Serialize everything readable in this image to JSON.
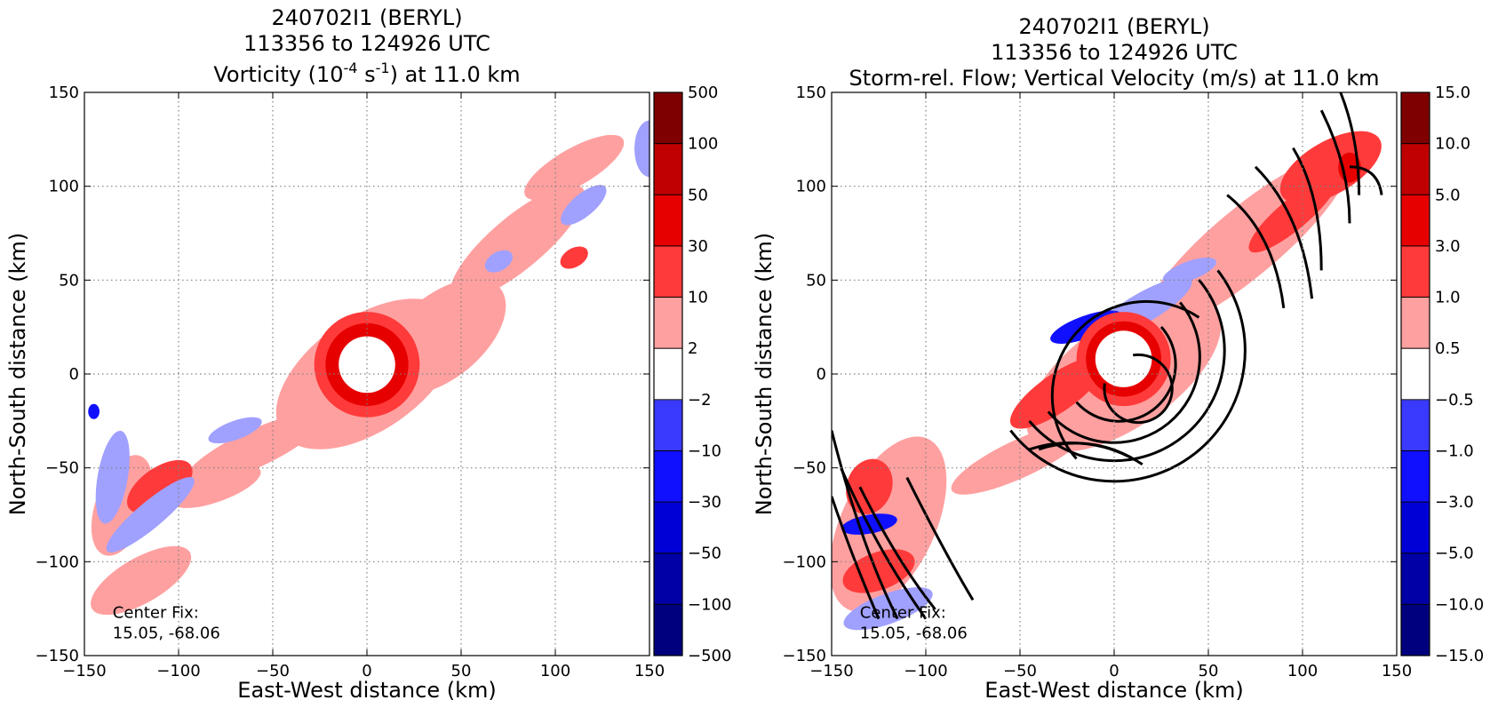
{
  "colors": {
    "neg": [
      "#00007f",
      "#0000a6",
      "#0000d6",
      "#1010ff",
      "#3a3aff",
      "#a0a0ff"
    ],
    "pos": [
      "#ffa0a0",
      "#ff3a3a",
      "#e60000",
      "#c00000",
      "#9c0000",
      "#7f0000"
    ],
    "white": "#ffffff",
    "grid": "#808080",
    "stream": "#000000"
  },
  "chart_data": [
    {
      "type": "heatmap",
      "title_lines": [
        "240702I1 (BERYL)",
        "113356 to 124926 UTC"
      ],
      "title_var_prefix": "Vorticity (10",
      "title_var_exp1": "-4",
      "title_var_mid": " s",
      "title_var_exp2": "-1",
      "title_var_suffix": ") at 11.0 km",
      "xlabel": "East-West distance (km)",
      "ylabel": "North-South distance (km)",
      "xlim": [
        -150,
        150
      ],
      "ylim": [
        -150,
        150
      ],
      "xticks": [
        "−150",
        "−100",
        "−50",
        "0",
        "50",
        "100",
        "150"
      ],
      "yticks": [
        "−150",
        "−100",
        "−50",
        "0",
        "50",
        "100",
        "150"
      ],
      "grid": true,
      "colorbar_levels": [
        -500,
        -100,
        -50,
        -30,
        -10,
        -2,
        2,
        10,
        30,
        50,
        100,
        500
      ],
      "colorbar_labels": [
        "−500",
        "−100",
        "−50",
        "−30",
        "−10",
        "−2",
        "2",
        "10",
        "30",
        "50",
        "100",
        "500"
      ],
      "annotation": [
        "Center Fix:",
        "15.05, -68.06"
      ],
      "features": {
        "eye_ring": {
          "cx": 0,
          "cy": 5,
          "r_inner": 15,
          "r_mid": 22,
          "r_outer": 28
        },
        "blobs": [
          {
            "cx": 0,
            "cy": 0,
            "rx": 55,
            "ry": 30,
            "rot": -35,
            "level": 1
          },
          {
            "cx": 40,
            "cy": 20,
            "rx": 40,
            "ry": 22,
            "rot": -40,
            "level": 1
          },
          {
            "cx": 80,
            "cy": 70,
            "rx": 45,
            "ry": 14,
            "rot": -40,
            "level": 1
          },
          {
            "cx": 110,
            "cy": 110,
            "rx": 30,
            "ry": 10,
            "rot": -30,
            "level": 1
          },
          {
            "cx": -60,
            "cy": -40,
            "rx": 40,
            "ry": 10,
            "rot": -25,
            "level": 1
          },
          {
            "cx": -80,
            "cy": -60,
            "rx": 25,
            "ry": 8,
            "rot": -20,
            "level": 1
          },
          {
            "cx": -120,
            "cy": -110,
            "rx": 30,
            "ry": 12,
            "rot": -30,
            "level": 1
          },
          {
            "cx": -130,
            "cy": -70,
            "rx": 14,
            "ry": 28,
            "rot": 20,
            "level": 1
          },
          {
            "cx": -110,
            "cy": -60,
            "rx": 20,
            "ry": 10,
            "rot": -35,
            "level": 2
          },
          {
            "cx": 110,
            "cy": 62,
            "rx": 8,
            "ry": 5,
            "rot": -30,
            "level": 2
          },
          {
            "cx": -115,
            "cy": -75,
            "rx": 30,
            "ry": 7,
            "rot": -40,
            "level": -1
          },
          {
            "cx": -135,
            "cy": -55,
            "rx": 8,
            "ry": 25,
            "rot": 10,
            "level": -1
          },
          {
            "cx": 115,
            "cy": 90,
            "rx": 15,
            "ry": 6,
            "rot": -40,
            "level": -1
          },
          {
            "cx": 150,
            "cy": 120,
            "rx": 8,
            "ry": 15,
            "rot": 0,
            "level": -1
          },
          {
            "cx": 70,
            "cy": 60,
            "rx": 8,
            "ry": 5,
            "rot": -30,
            "level": -1
          },
          {
            "cx": -70,
            "cy": -30,
            "rx": 15,
            "ry": 5,
            "rot": -20,
            "level": -1
          },
          {
            "cx": -145,
            "cy": -20,
            "rx": 3,
            "ry": 4,
            "rot": 0,
            "level": -3
          }
        ]
      }
    },
    {
      "type": "heatmap",
      "title_lines": [
        "240702I1 (BERYL)",
        "113356 to 124926 UTC",
        "Storm-rel. Flow; Vertical Velocity (m/s) at 11.0 km"
      ],
      "xlabel": "East-West distance (km)",
      "ylabel": "North-South distance (km)",
      "xlim": [
        -150,
        150
      ],
      "ylim": [
        -150,
        150
      ],
      "xticks": [
        "−150",
        "−100",
        "−50",
        "0",
        "50",
        "100",
        "150"
      ],
      "yticks": [
        "−150",
        "−100",
        "−50",
        "0",
        "50",
        "100",
        "150"
      ],
      "grid": true,
      "colorbar_levels": [
        -15.0,
        -10.0,
        -5.0,
        -3.0,
        -1.0,
        -0.5,
        0.5,
        1.0,
        3.0,
        5.0,
        10.0,
        15.0
      ],
      "colorbar_labels": [
        "−15.0",
        "−10.0",
        "−5.0",
        "−3.0",
        "−1.0",
        "−0.5",
        "0.5",
        "1.0",
        "3.0",
        "5.0",
        "10.0",
        "15.0"
      ],
      "annotation": [
        "Center Fix:",
        "15.05, -68.06"
      ],
      "features": {
        "eye_ring": {
          "cx": 5,
          "cy": 8,
          "r_inner": 15,
          "r_mid": 20,
          "r_outer": 25
        },
        "blobs": [
          {
            "cx": 5,
            "cy": 0,
            "rx": 60,
            "ry": 28,
            "rot": -35,
            "level": 1
          },
          {
            "cx": 70,
            "cy": 70,
            "rx": 70,
            "ry": 18,
            "rot": -40,
            "level": 1
          },
          {
            "cx": 115,
            "cy": 110,
            "rx": 30,
            "ry": 14,
            "rot": -30,
            "level": 2
          },
          {
            "cx": 95,
            "cy": 85,
            "rx": 30,
            "ry": 8,
            "rot": -40,
            "level": 2
          },
          {
            "cx": -50,
            "cy": -45,
            "rx": 40,
            "ry": 10,
            "rot": -25,
            "level": 1
          },
          {
            "cx": -120,
            "cy": -80,
            "rx": 25,
            "ry": 50,
            "rot": 25,
            "level": 1
          },
          {
            "cx": -130,
            "cy": -60,
            "rx": 12,
            "ry": 15,
            "rot": 20,
            "level": 2
          },
          {
            "cx": -125,
            "cy": -105,
            "rx": 20,
            "ry": 10,
            "rot": -20,
            "level": 2
          },
          {
            "cx": -30,
            "cy": -10,
            "rx": 30,
            "ry": 10,
            "rot": -35,
            "level": 2
          },
          {
            "cx": 15,
            "cy": 35,
            "rx": 30,
            "ry": 8,
            "rot": -30,
            "level": -1
          },
          {
            "cx": -15,
            "cy": 25,
            "rx": 20,
            "ry": 6,
            "rot": -20,
            "level": -3
          },
          {
            "cx": 40,
            "cy": 55,
            "rx": 15,
            "ry": 5,
            "rot": -20,
            "level": -1
          },
          {
            "cx": -130,
            "cy": -80,
            "rx": 15,
            "ry": 5,
            "rot": -10,
            "level": -3
          },
          {
            "cx": -120,
            "cy": -125,
            "rx": 25,
            "ry": 8,
            "rot": -20,
            "level": -1
          },
          {
            "cx": 125,
            "cy": 110,
            "rx": 6,
            "ry": 8,
            "rot": 0,
            "level": 3
          }
        ],
        "streamlines": [
          "M -5 -5 A 18 18 0 1 1 10 10",
          "M -20 -15 A 30 30 0 1 1 25 25",
          "M -35 -20 A 42 42 0 1 1 35 38",
          "M -45 -25 A 55 55 0 1 1 45 50",
          "M -55 -30 A 65 65 0 1 1 55 55",
          "M -20 -45 A 50 50 0 0 0 45 30",
          "M -40 -40 A 60 60 0 0 0 10 -45",
          "M -45 -40 A 70 70 0 0 0 15 -48",
          "M 60 95 Q 85 75 90 35",
          "M 75 110 Q 100 85 105 40",
          "M 95 120 Q 110 95 110 55",
          "M 110 140 Q 125 110 125 80",
          "M 120 150 Q 130 125 130 95",
          "M 125 110 Q 140 110 142 95",
          "M -150 -30 Q -135 -90 -115 -130",
          "M -145 -50 Q -125 -95 -100 -130",
          "M -135 -60 Q -115 -100 -95 -125",
          "M -110 -55 Q -90 -95 -75 -120",
          "M -150 -65 Q -140 -95 -125 -130"
        ]
      }
    }
  ]
}
